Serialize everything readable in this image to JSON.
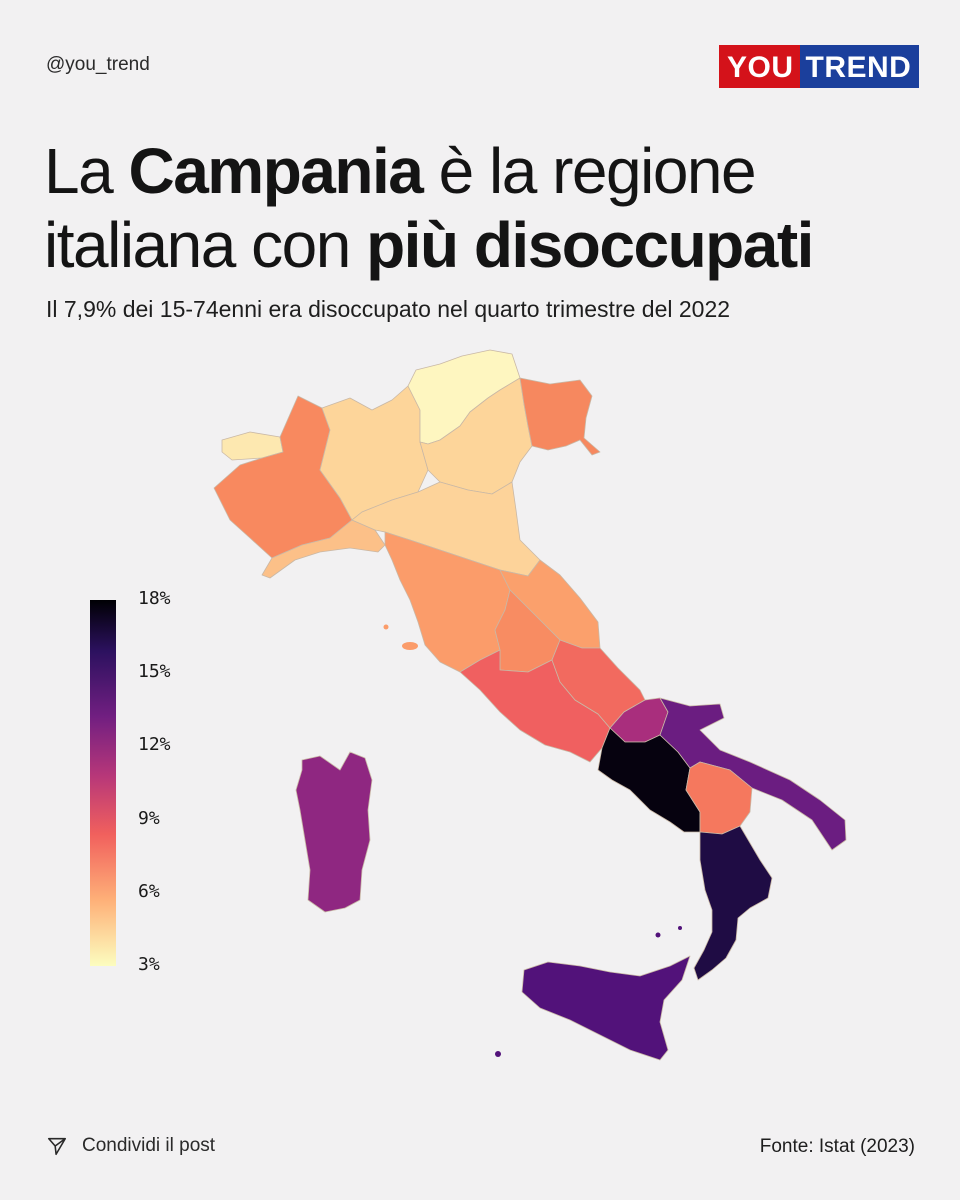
{
  "header": {
    "handle": "@you_trend",
    "logo_you": "YOU",
    "logo_trend": "TREND"
  },
  "title": {
    "part1": "La ",
    "bold1": "Campania",
    "part2": " è la regione italiana con ",
    "bold2": "più disoccupati"
  },
  "subtitle": "Il 7,9% dei 15-74enni era disoccupato nel quarto trimestre del 2022",
  "legend": {
    "ticks": [
      "18%",
      "15%",
      "12%",
      "9%",
      "6%",
      "3%"
    ],
    "min": 3,
    "max": 18
  },
  "colors": {
    "background": "#f2f1f2",
    "logo_red": "#d4121a",
    "logo_blue": "#1b3f9c"
  },
  "regions": [
    {
      "name": "Valle d'Aosta",
      "color": "#fde8b0"
    },
    {
      "name": "Piemonte",
      "color": "#f8895f"
    },
    {
      "name": "Liguria",
      "color": "#fcc088"
    },
    {
      "name": "Lombardia",
      "color": "#fdd59a"
    },
    {
      "name": "Trentino-Alto Adige",
      "color": "#fef6c0"
    },
    {
      "name": "Veneto",
      "color": "#fdd59a"
    },
    {
      "name": "Friuli-Venezia Giulia",
      "color": "#f6885f"
    },
    {
      "name": "Emilia-Romagna",
      "color": "#fdd39a"
    },
    {
      "name": "Toscana",
      "color": "#fb9c6a"
    },
    {
      "name": "Marche",
      "color": "#fba06c"
    },
    {
      "name": "Umbria",
      "color": "#f88c62"
    },
    {
      "name": "Lazio",
      "color": "#f06060"
    },
    {
      "name": "Abruzzo",
      "color": "#f26a5f"
    },
    {
      "name": "Molise",
      "color": "#a92e7d"
    },
    {
      "name": "Campania",
      "color": "#06020f"
    },
    {
      "name": "Puglia",
      "color": "#6b1d81"
    },
    {
      "name": "Basilicata",
      "color": "#f5785e"
    },
    {
      "name": "Calabria",
      "color": "#1f0c44"
    },
    {
      "name": "Sicilia",
      "color": "#52127a"
    },
    {
      "name": "Sardegna",
      "color": "#8f2781"
    }
  ],
  "footer": {
    "share": "Condividi il post",
    "source": "Fonte: Istat  (2023)"
  }
}
